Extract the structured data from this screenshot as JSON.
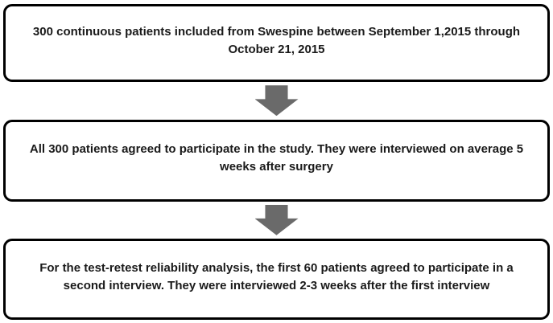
{
  "diagram": {
    "type": "flowchart",
    "direction": "top-down",
    "nodes": [
      {
        "id": "inclusion",
        "text": "300 continuous patients included from Swespine between September 1,2015 through October 21, 2015"
      },
      {
        "id": "participation",
        "text": "All 300 patients agreed to participate in the study. They were interviewed on average 5 weeks after surgery"
      },
      {
        "id": "test-retest",
        "text": "For the test-retest reliability analysis, the first 60 patients agreed to participate in a second interview. They were interviewed 2-3 weeks after the first interview"
      }
    ],
    "connectors": [
      {
        "from": "inclusion",
        "to": "participation",
        "shape": "block-arrow-down"
      },
      {
        "from": "participation",
        "to": "test-retest",
        "shape": "block-arrow-down"
      }
    ],
    "colors": {
      "box_border": "#000000",
      "box_fill": "#ffffff",
      "text": "#1a1a1a",
      "arrow": "#6a6a6a"
    }
  }
}
